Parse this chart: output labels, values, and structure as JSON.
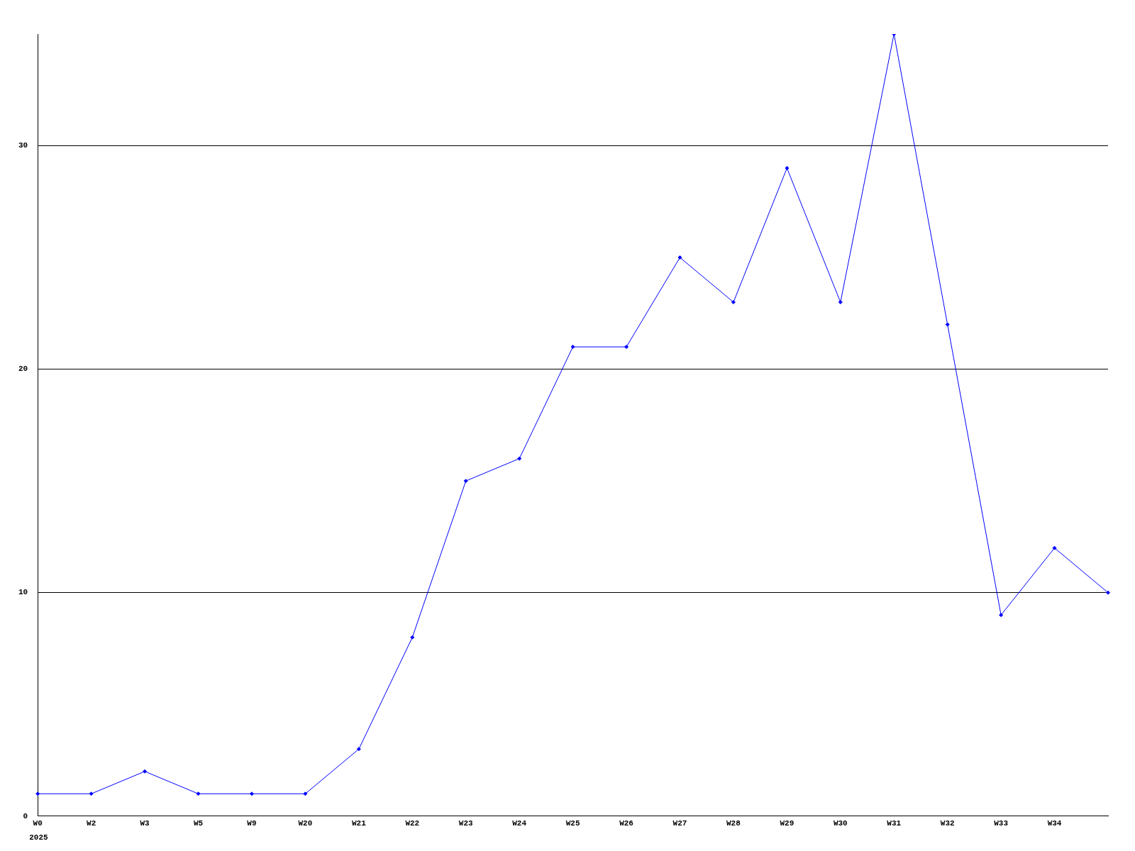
{
  "chart_data": {
    "type": "line",
    "categories": [
      "W0",
      "W2",
      "W3",
      "W5",
      "W9",
      "W20",
      "W21",
      "W22",
      "W23",
      "W24",
      "W25",
      "W26",
      "W27",
      "W28",
      "W29",
      "W30",
      "W31",
      "W32",
      "W33",
      "W34",
      null
    ],
    "series": [
      {
        "color": "#0000ff",
        "values": [
          1,
          1,
          2,
          1,
          1,
          1,
          3,
          8,
          15,
          16,
          21,
          21,
          25,
          23,
          29,
          23,
          35,
          22,
          9,
          12,
          10
        ]
      }
    ],
    "ylim": [
      0,
      35
    ],
    "yticks": [
      0,
      10,
      20,
      30
    ],
    "grid": "y",
    "legend": false,
    "marker": "diamond",
    "line_style": "solid",
    "annotations": [
      "2025"
    ]
  }
}
